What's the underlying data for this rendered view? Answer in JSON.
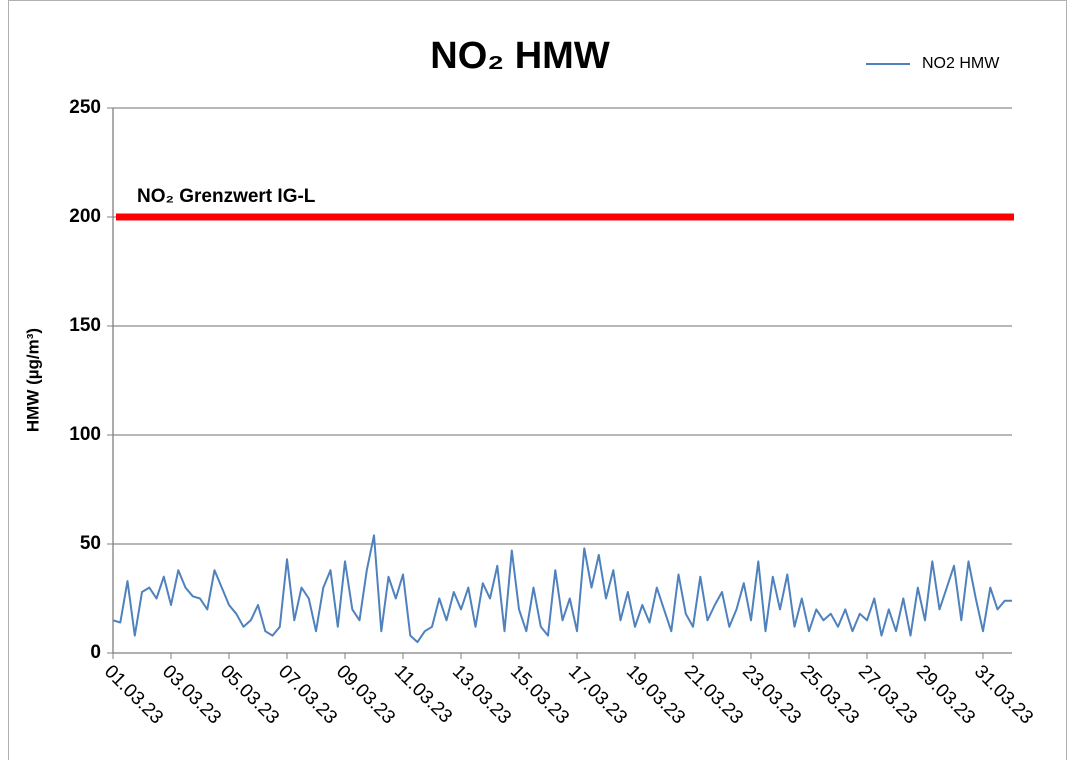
{
  "chart_data": {
    "type": "line",
    "title": "NO₂ HMW",
    "y_label": "HMW (µg/m³)",
    "x": [
      0,
      0.25,
      0.5,
      0.75,
      1,
      1.25,
      1.5,
      1.75,
      2,
      2.25,
      2.5,
      2.75,
      3,
      3.25,
      3.5,
      3.75,
      4,
      4.25,
      4.5,
      4.75,
      5,
      5.25,
      5.5,
      5.75,
      6,
      6.25,
      6.5,
      6.75,
      7,
      7.25,
      7.5,
      7.75,
      8,
      8.25,
      8.5,
      8.75,
      9,
      9.25,
      9.5,
      9.75,
      10,
      10.25,
      10.5,
      10.75,
      11,
      11.25,
      11.5,
      11.75,
      12,
      12.25,
      12.5,
      12.75,
      13,
      13.25,
      13.5,
      13.75,
      14,
      14.25,
      14.5,
      14.75,
      15,
      15.25,
      15.5,
      15.75,
      16,
      16.25,
      16.5,
      16.75,
      17,
      17.25,
      17.5,
      17.75,
      18,
      18.25,
      18.5,
      18.75,
      19,
      19.25,
      19.5,
      19.75,
      20,
      20.25,
      20.5,
      20.75,
      21,
      21.25,
      21.5,
      21.75,
      22,
      22.25,
      22.5,
      22.75,
      23,
      23.25,
      23.5,
      23.75,
      24,
      24.25,
      24.5,
      24.75,
      25,
      25.25,
      25.5,
      25.75,
      26,
      26.25,
      26.5,
      26.75,
      27,
      27.25,
      27.5,
      27.75,
      28,
      28.25,
      28.5,
      28.75,
      29,
      29.25,
      29.5,
      29.75,
      30,
      30.25,
      30.5,
      30.75,
      31
    ],
    "series": [
      {
        "name": "NO2 HMW",
        "color": "#4f81bd",
        "values": [
          15,
          14,
          33,
          8,
          28,
          30,
          25,
          35,
          22,
          38,
          30,
          26,
          25,
          20,
          38,
          30,
          22,
          18,
          12,
          15,
          22,
          10,
          8,
          12,
          43,
          15,
          30,
          25,
          10,
          30,
          38,
          12,
          42,
          20,
          15,
          38,
          54,
          10,
          35,
          25,
          36,
          8,
          5,
          10,
          12,
          25,
          15,
          28,
          20,
          30,
          12,
          32,
          25,
          40,
          10,
          47,
          20,
          10,
          30,
          12,
          8,
          38,
          15,
          25,
          10,
          48,
          30,
          45,
          25,
          38,
          15,
          28,
          12,
          22,
          14,
          30,
          20,
          10,
          36,
          18,
          12,
          35,
          15,
          22,
          28,
          12,
          20,
          32,
          15,
          42,
          10,
          35,
          20,
          36,
          12,
          25,
          10,
          20,
          15,
          18,
          12,
          20,
          10,
          18,
          15,
          25,
          8,
          20,
          10,
          25,
          8,
          30,
          15,
          42,
          20,
          30,
          40,
          15,
          42,
          25,
          10,
          30,
          20,
          24,
          24
        ]
      }
    ],
    "annotations": [
      {
        "text": "NO₂ Grenzwert IG-L",
        "value": 200,
        "color": "#ff0000"
      }
    ],
    "xlim": [
      0,
      31
    ],
    "xticks": [
      {
        "value": 0,
        "label": "01.03.23"
      },
      {
        "value": 2,
        "label": "03.03.23"
      },
      {
        "value": 4,
        "label": "05.03.23"
      },
      {
        "value": 6,
        "label": "07.03.23"
      },
      {
        "value": 8,
        "label": "09.03.23"
      },
      {
        "value": 10,
        "label": "11.03.23"
      },
      {
        "value": 12,
        "label": "13.03.23"
      },
      {
        "value": 14,
        "label": "15.03.23"
      },
      {
        "value": 16,
        "label": "17.03.23"
      },
      {
        "value": 18,
        "label": "19.03.23"
      },
      {
        "value": 20,
        "label": "21.03.23"
      },
      {
        "value": 22,
        "label": "23.03.23"
      },
      {
        "value": 24,
        "label": "25.03.23"
      },
      {
        "value": 26,
        "label": "27.03.23"
      },
      {
        "value": 28,
        "label": "29.03.23"
      },
      {
        "value": 30,
        "label": "31.03.23"
      }
    ],
    "ylim": [
      0,
      250
    ],
    "yticks": [
      0,
      50,
      100,
      150,
      200,
      250
    ],
    "grid": true,
    "legend": "top-right"
  }
}
